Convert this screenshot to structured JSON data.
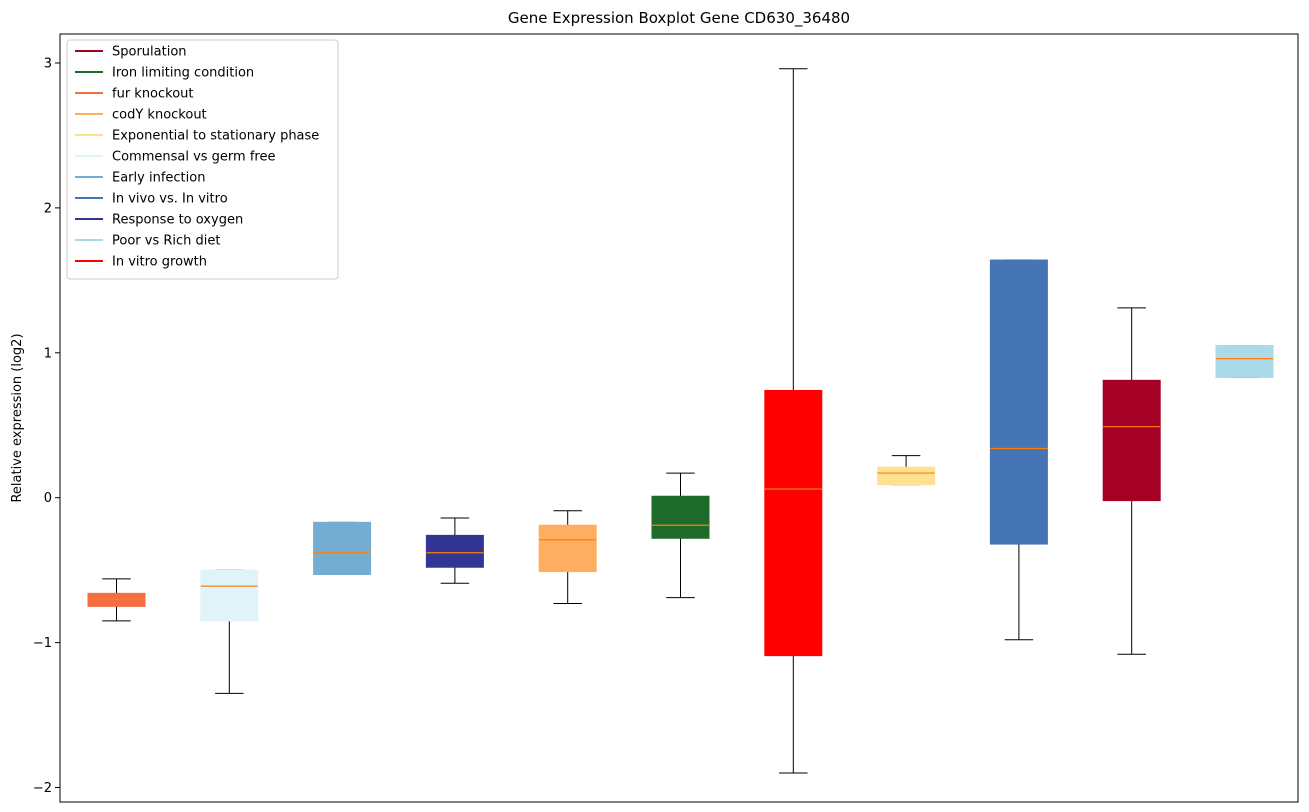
{
  "chart_data": {
    "type": "boxplot",
    "title": "Gene Expression Boxplot Gene CD630_36480",
    "xlabel": "",
    "ylabel": "Relative expression (log2)",
    "ylim": [
      -2.1,
      3.2
    ],
    "yticks": [
      -2,
      -1,
      0,
      1,
      2,
      3
    ],
    "ytick_labels": [
      "−2",
      "−1",
      "0",
      "1",
      "2",
      "3"
    ],
    "grid": false,
    "legend_position": "upper-left",
    "median_color": "#ff7f0e",
    "legend": [
      {
        "label": "Sporulation",
        "color": "#a50026"
      },
      {
        "label": "Iron limiting condition",
        "color": "#1e6b2a"
      },
      {
        "label": "fur knockout",
        "color": "#f46d43"
      },
      {
        "label": "codY knockout",
        "color": "#fdae61"
      },
      {
        "label": "Exponential to stationary phase",
        "color": "#fee090"
      },
      {
        "label": "Commensal vs germ free",
        "color": "#e0f3f8"
      },
      {
        "label": "Early infection",
        "color": "#74add1"
      },
      {
        "label": "In vivo vs. In vitro",
        "color": "#4575b4"
      },
      {
        "label": "Response to oxygen",
        "color": "#313695"
      },
      {
        "label": "Poor vs Rich diet",
        "color": "#abd9e9"
      },
      {
        "label": "In vitro growth",
        "color": "#ff0000"
      }
    ],
    "boxes": [
      {
        "group": "fur knockout",
        "color": "#f46d43",
        "whislo": -0.85,
        "q1": -0.75,
        "med": -0.7,
        "q3": -0.66,
        "whishi": -0.56
      },
      {
        "group": "Commensal vs germ free",
        "color": "#e0f3f8",
        "whislo": -1.35,
        "q1": -0.85,
        "med": -0.61,
        "q3": -0.5,
        "whishi": -0.5
      },
      {
        "group": "Early infection",
        "color": "#74add1",
        "whislo": -0.53,
        "q1": -0.53,
        "med": -0.38,
        "q3": -0.17,
        "whishi": -0.17
      },
      {
        "group": "Response to oxygen",
        "color": "#313695",
        "whislo": -0.59,
        "q1": -0.48,
        "med": -0.38,
        "q3": -0.26,
        "whishi": -0.14
      },
      {
        "group": "codY knockout",
        "color": "#fdae61",
        "whislo": -0.73,
        "q1": -0.51,
        "med": -0.29,
        "q3": -0.19,
        "whishi": -0.09
      },
      {
        "group": "Iron limiting condition",
        "color": "#1e6b2a",
        "whislo": -0.69,
        "q1": -0.28,
        "med": -0.19,
        "q3": 0.01,
        "whishi": 0.17
      },
      {
        "group": "In vitro growth",
        "color": "#ff0000",
        "whislo": -1.9,
        "q1": -1.09,
        "med": 0.06,
        "q3": 0.74,
        "whishi": 2.96
      },
      {
        "group": "Exponential to stationary phase",
        "color": "#fee090",
        "whislo": 0.09,
        "q1": 0.09,
        "med": 0.17,
        "q3": 0.21,
        "whishi": 0.29
      },
      {
        "group": "In vivo vs. In vitro",
        "color": "#4575b4",
        "whislo": -0.98,
        "q1": -0.32,
        "med": 0.34,
        "q3": 1.64,
        "whishi": 1.64
      },
      {
        "group": "Sporulation",
        "color": "#a50026",
        "whislo": -1.08,
        "q1": -0.02,
        "med": 0.49,
        "q3": 0.81,
        "whishi": 1.31
      },
      {
        "group": "Poor vs Rich diet",
        "color": "#abd9e9",
        "whislo": 0.83,
        "q1": 0.83,
        "med": 0.96,
        "q3": 1.05,
        "whishi": 1.05
      }
    ]
  }
}
